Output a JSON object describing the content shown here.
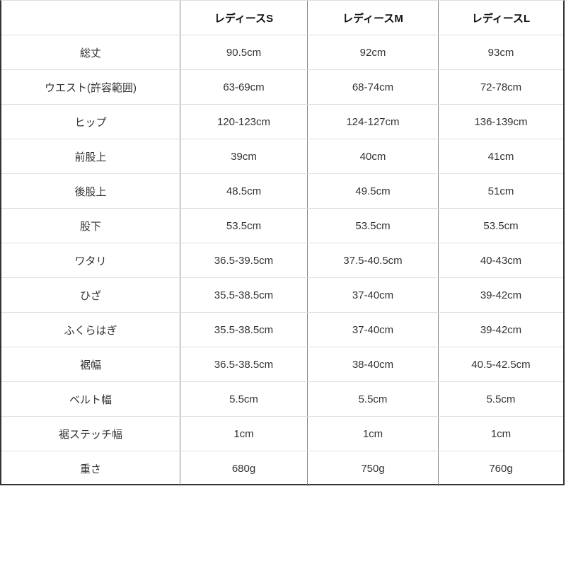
{
  "headers": [
    "",
    "レディースS",
    "レディースM",
    "レディースL"
  ],
  "rows": [
    [
      "総丈",
      "90.5cm",
      "92cm",
      "93cm"
    ],
    [
      "ウエスト(許容範囲)",
      "63-69cm",
      "68-74cm",
      "72-78cm"
    ],
    [
      "ヒップ",
      "120-123cm",
      "124-127cm",
      "136-139cm"
    ],
    [
      "前股上",
      "39cm",
      "40cm",
      "41cm"
    ],
    [
      "後股上",
      "48.5cm",
      "49.5cm",
      "51cm"
    ],
    [
      "股下",
      "53.5cm",
      "53.5cm",
      "53.5cm"
    ],
    [
      "ワタリ",
      "36.5-39.5cm",
      "37.5-40.5cm",
      "40-43cm"
    ],
    [
      "ひざ",
      "35.5-38.5cm",
      "37-40cm",
      "39-42cm"
    ],
    [
      "ふくらはぎ",
      "35.5-38.5cm",
      "37-40cm",
      "39-42cm"
    ],
    [
      "裾幅",
      "36.5-38.5cm",
      "38-40cm",
      "40.5-42.5cm"
    ],
    [
      "ベルト幅",
      "5.5cm",
      "5.5cm",
      "5.5cm"
    ],
    [
      "裾ステッチ幅",
      "1cm",
      "1cm",
      "1cm"
    ],
    [
      "重さ",
      "680g",
      "750g",
      "760g"
    ]
  ]
}
